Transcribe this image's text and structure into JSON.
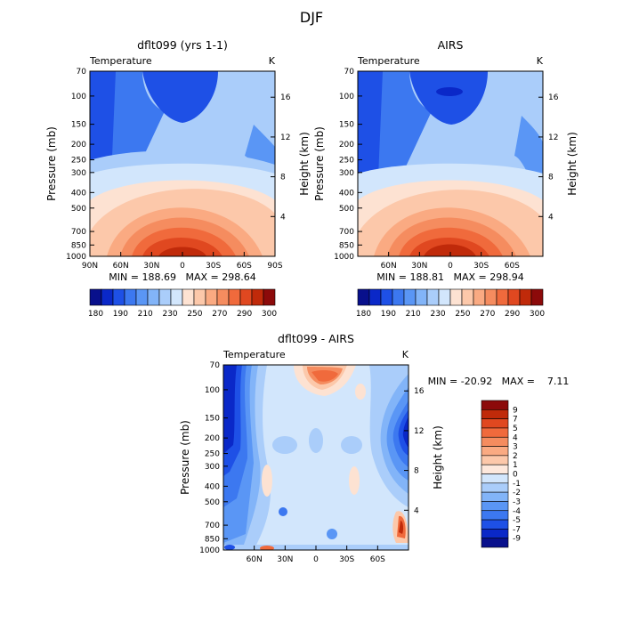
{
  "figure": {
    "title": "DJF"
  },
  "chart_data": [
    {
      "type": "heatmap",
      "title": "dflt099 (yrs 1-1)",
      "variable_label": "Temperature",
      "units_label": "K",
      "ylabel": "Pressure (mb)",
      "y2label": "Height (km)",
      "x_ticks": [
        "90N",
        "60N",
        "30N",
        "0",
        "30S",
        "60S",
        "90S"
      ],
      "y_ticks": [
        70,
        100,
        150,
        200,
        250,
        300,
        400,
        500,
        700,
        850,
        1000
      ],
      "y2_ticks": [
        4,
        8,
        12,
        16
      ],
      "stats_text": "MIN = 188.69   MAX = 298.64",
      "min": 188.69,
      "max": 298.64
    },
    {
      "type": "heatmap",
      "title": "AIRS",
      "variable_label": "Temperature",
      "units_label": "K",
      "ylabel": "Pressure (mb)",
      "y2label": "Height (km)",
      "x_ticks": [
        "60N",
        "30N",
        "0",
        "30S",
        "60S"
      ],
      "y_ticks": [
        70,
        100,
        150,
        200,
        250,
        300,
        400,
        500,
        700,
        850,
        1000
      ],
      "y2_ticks": [
        4,
        8,
        12,
        16
      ],
      "stats_text": "MIN = 188.81   MAX = 298.94",
      "min": 188.81,
      "max": 298.94
    },
    {
      "type": "heatmap",
      "title": "dflt099 - AIRS",
      "variable_label": "Temperature",
      "units_label": "K",
      "ylabel": "Pressure (mb)",
      "y2label": "Height (km)",
      "x_ticks": [
        "60N",
        "30N",
        "0",
        "30S",
        "60S"
      ],
      "y_ticks": [
        70,
        100,
        150,
        200,
        250,
        300,
        400,
        500,
        700,
        850,
        1000
      ],
      "y2_ticks": [
        4,
        8,
        12,
        16
      ],
      "stats_text": "MIN = -20.92   MAX =    7.11",
      "min": -20.92,
      "max": 7.11
    }
  ],
  "colorbars": {
    "absolute": {
      "labels": [
        "180",
        "190",
        "210",
        "230",
        "250",
        "270",
        "290",
        "300"
      ],
      "colors": [
        "#08108c",
        "#0a28c8",
        "#1e50e6",
        "#3c78f0",
        "#5a96f5",
        "#82b4f8",
        "#aacdfa",
        "#d2e6fc",
        "#fde2d2",
        "#fcc8aa",
        "#faaa82",
        "#f58c5f",
        "#f06a3c",
        "#e04820",
        "#c02a0a",
        "#8c0a0a"
      ]
    },
    "difference": {
      "labels": [
        "9",
        "7",
        "5",
        "4",
        "3",
        "2",
        "1",
        "0",
        "-1",
        "-2",
        "-3",
        "-4",
        "-5",
        "-7",
        "-9"
      ],
      "colors": [
        "#8c0a0a",
        "#c02a0a",
        "#e04820",
        "#f06a3c",
        "#f58c5f",
        "#faaa82",
        "#fcc8aa",
        "#fde8dc",
        "#d2e6fc",
        "#aacdfa",
        "#82b4f8",
        "#5a96f5",
        "#3c78f0",
        "#1e50e6",
        "#0a28c8",
        "#08108c"
      ]
    }
  }
}
